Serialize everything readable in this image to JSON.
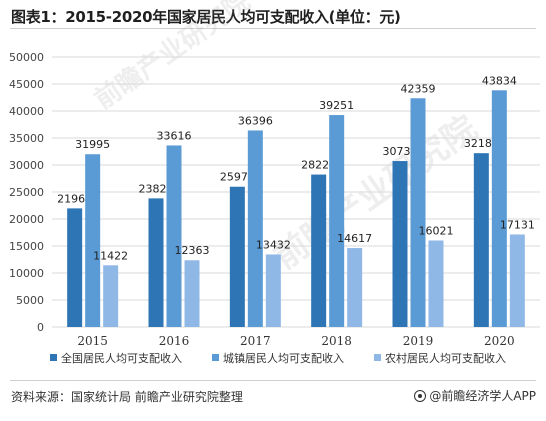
{
  "title": "图表1：2015-2020年国家居民人均可支配收入(单位：元)",
  "source": "资料来源：国家统计局 前瞻产业研究院整理",
  "logo_text": "@前瞻经济学人APP",
  "watermark_text": "前瞻产业研究院",
  "chart_data": {
    "type": "bar",
    "categories": [
      "2015",
      "2016",
      "2017",
      "2018",
      "2019",
      "2020"
    ],
    "ylim": [
      0,
      50000
    ],
    "yticks": [
      0,
      5000,
      10000,
      15000,
      20000,
      25000,
      30000,
      35000,
      40000,
      45000,
      50000
    ],
    "grid": true,
    "legend_position": "bottom",
    "series": [
      {
        "name": "全国居民人均可支配收入",
        "color": "#2e75b6",
        "values": [
          21966,
          23821,
          25974,
          28228,
          30733,
          32189
        ]
      },
      {
        "name": "城镇居民人均可支配收入",
        "color": "#5b9bd5",
        "values": [
          31995,
          33616,
          36396,
          39251,
          42359,
          43834
        ]
      },
      {
        "name": "农村居民人均可支配收入",
        "color": "#8fb8e6",
        "values": [
          11422,
          12363,
          13432,
          14617,
          16021,
          17131
        ]
      }
    ]
  }
}
